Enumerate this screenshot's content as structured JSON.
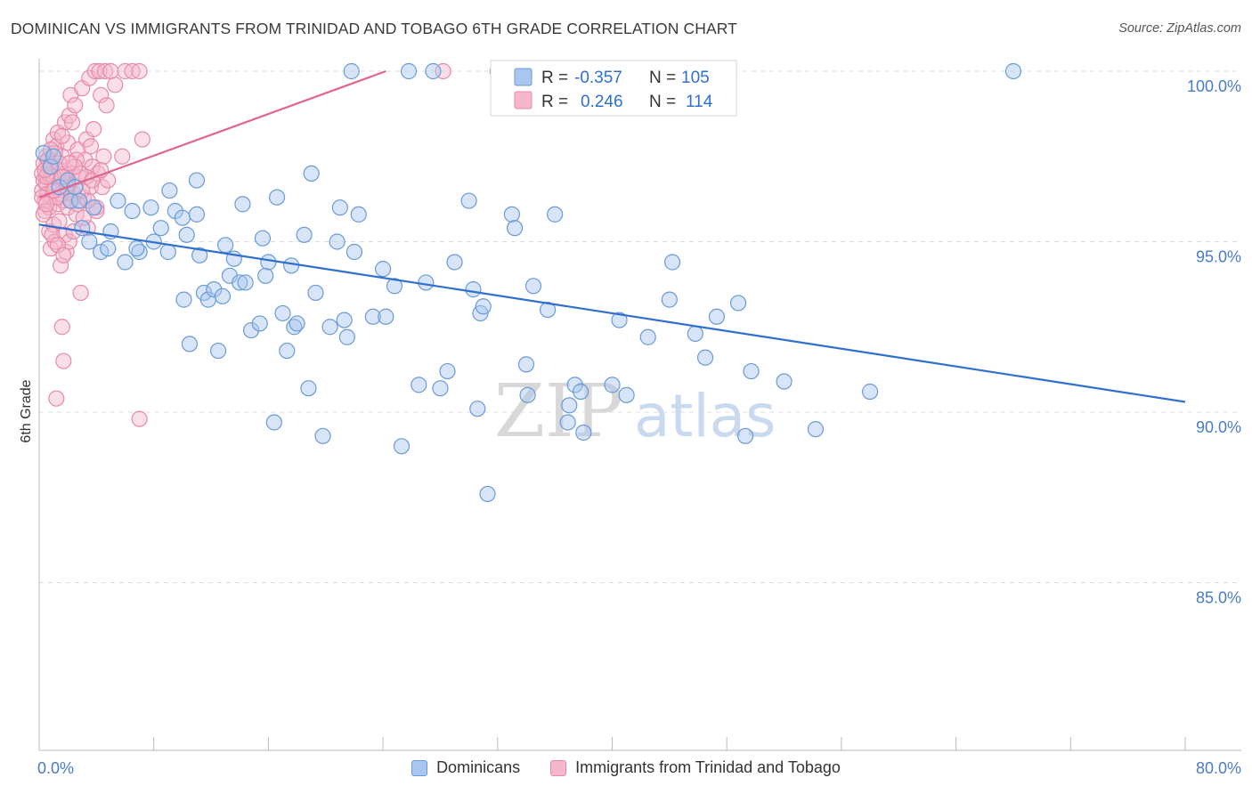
{
  "title": "DOMINICAN VS IMMIGRANTS FROM TRINIDAD AND TOBAGO 6TH GRADE CORRELATION CHART",
  "source": "Source: ZipAtlas.com",
  "watermark": {
    "zip": "ZIP",
    "atlas": "atlas"
  },
  "colors": {
    "blue_fill": "#a9c6f0",
    "blue_stroke": "#6a9ad6",
    "blue_line": "#2f6fcf",
    "pink_fill": "#f5b8cb",
    "pink_stroke": "#e68aa8",
    "pink_line": "#e0648c",
    "tick_color": "#4a7bc8",
    "grid": "#dcdcdc"
  },
  "stats_legend": [
    {
      "r_label": "R =",
      "r_value": "-0.357",
      "n_label": "N =",
      "n_value": "105",
      "series": "blue"
    },
    {
      "r_label": "R =",
      "r_value": "0.246",
      "n_label": "N =",
      "n_value": "114",
      "series": "pink"
    }
  ],
  "chart_data": {
    "type": "scatter",
    "title": "DOMINICAN VS IMMIGRANTS FROM TRINIDAD AND TOBAGO 6TH GRADE CORRELATION CHART",
    "xlabel": "",
    "ylabel": "6th Grade",
    "xlim": [
      0,
      80
    ],
    "ylim": [
      80.5,
      100.5
    ],
    "x_tick_labels": [
      {
        "value": 0,
        "label": "0.0%"
      },
      {
        "value": 80,
        "label": "80.0%"
      }
    ],
    "x_minor_ticks": [
      8,
      16,
      24,
      32,
      40,
      48,
      56,
      64,
      72,
      80
    ],
    "y_ticks": [
      {
        "value": 100,
        "label": "100.0%"
      },
      {
        "value": 95,
        "label": "95.0%"
      },
      {
        "value": 90,
        "label": "90.0%"
      },
      {
        "value": 85,
        "label": "85.0%"
      }
    ],
    "grid": true,
    "legend": "bottom-center",
    "series": [
      {
        "name": "Dominicans",
        "color": "blue",
        "trend": {
          "x": [
            0,
            80
          ],
          "y": [
            95.5,
            90.3
          ]
        },
        "points": [
          [
            0.3,
            97.6
          ],
          [
            0.8,
            97.2
          ],
          [
            1.0,
            97.5
          ],
          [
            1.4,
            96.6
          ],
          [
            2.0,
            96.8
          ],
          [
            2.2,
            96.2
          ],
          [
            2.8,
            96.2
          ],
          [
            3.0,
            95.4
          ],
          [
            3.5,
            95.0
          ],
          [
            4.3,
            94.7
          ],
          [
            4.8,
            94.8
          ],
          [
            5.5,
            96.2
          ],
          [
            6.0,
            94.4
          ],
          [
            6.5,
            95.9
          ],
          [
            7.0,
            94.7
          ],
          [
            7.8,
            96.0
          ],
          [
            8.5,
            95.4
          ],
          [
            9.0,
            94.7
          ],
          [
            9.1,
            96.5
          ],
          [
            9.5,
            95.9
          ],
          [
            10.0,
            95.7
          ],
          [
            10.1,
            93.3
          ],
          [
            10.3,
            95.2
          ],
          [
            10.5,
            92.0
          ],
          [
            11.0,
            95.8
          ],
          [
            11.2,
            94.6
          ],
          [
            11.5,
            93.5
          ],
          [
            11.8,
            93.3
          ],
          [
            12.2,
            93.6
          ],
          [
            12.5,
            91.8
          ],
          [
            12.8,
            93.4
          ],
          [
            13.3,
            94.0
          ],
          [
            13.6,
            94.5
          ],
          [
            14.0,
            93.8
          ],
          [
            14.4,
            93.8
          ],
          [
            14.8,
            92.4
          ],
          [
            15.4,
            92.6
          ],
          [
            15.6,
            95.1
          ],
          [
            15.8,
            94.0
          ],
          [
            16.0,
            94.4
          ],
          [
            16.4,
            89.7
          ],
          [
            16.6,
            96.3
          ],
          [
            17.0,
            92.9
          ],
          [
            17.3,
            91.8
          ],
          [
            17.8,
            92.5
          ],
          [
            18.0,
            92.6
          ],
          [
            18.5,
            95.2
          ],
          [
            18.8,
            90.7
          ],
          [
            19.3,
            93.5
          ],
          [
            19.8,
            89.3
          ],
          [
            20.3,
            92.5
          ],
          [
            20.8,
            95.0
          ],
          [
            21.3,
            92.7
          ],
          [
            21.5,
            92.2
          ],
          [
            21.8,
            100.0
          ],
          [
            22.0,
            94.7
          ],
          [
            22.3,
            95.8
          ],
          [
            23.3,
            92.8
          ],
          [
            24.2,
            92.8
          ],
          [
            24.8,
            93.7
          ],
          [
            25.3,
            89.0
          ],
          [
            25.8,
            100.0
          ],
          [
            26.5,
            90.8
          ],
          [
            27.5,
            100.0
          ],
          [
            28.0,
            90.7
          ],
          [
            28.5,
            91.2
          ],
          [
            29.0,
            94.4
          ],
          [
            30.3,
            93.6
          ],
          [
            30.6,
            90.1
          ],
          [
            30.8,
            92.9
          ],
          [
            31.0,
            93.1
          ],
          [
            31.3,
            87.6
          ],
          [
            32.0,
            100.0
          ],
          [
            33.0,
            95.8
          ],
          [
            33.2,
            95.4
          ],
          [
            34.0,
            91.4
          ],
          [
            34.1,
            90.5
          ],
          [
            34.5,
            93.7
          ],
          [
            36.0,
            95.8
          ],
          [
            36.9,
            89.7
          ],
          [
            37.0,
            90.2
          ],
          [
            37.4,
            90.8
          ],
          [
            37.8,
            90.6
          ],
          [
            38.0,
            89.4
          ],
          [
            40.0,
            90.8
          ],
          [
            41.0,
            90.5
          ],
          [
            44.0,
            93.3
          ],
          [
            44.2,
            94.4
          ],
          [
            45.8,
            92.3
          ],
          [
            47.3,
            92.8
          ],
          [
            48.8,
            93.2
          ],
          [
            49.3,
            89.3
          ],
          [
            49.7,
            91.2
          ],
          [
            54.2,
            89.5
          ],
          [
            68.0,
            100.0
          ],
          [
            2.5,
            96.6
          ],
          [
            3.8,
            96.0
          ],
          [
            5.0,
            95.3
          ],
          [
            6.8,
            94.8
          ],
          [
            8.0,
            95.0
          ],
          [
            13.0,
            94.9
          ],
          [
            17.6,
            94.3
          ],
          [
            24.0,
            94.2
          ],
          [
            27.0,
            93.8
          ],
          [
            35.5,
            93.0
          ],
          [
            40.5,
            92.7
          ],
          [
            42.5,
            92.2
          ],
          [
            46.5,
            91.6
          ],
          [
            52.0,
            90.9
          ],
          [
            58.0,
            90.6
          ],
          [
            30.0,
            96.2
          ],
          [
            19.0,
            97.0
          ],
          [
            11.0,
            96.8
          ],
          [
            14.2,
            96.1
          ],
          [
            21.0,
            96.0
          ]
        ]
      },
      {
        "name": "Immigrants from Trinidad and Tobago",
        "color": "pink",
        "trend": {
          "x": [
            0,
            24.2
          ],
          "y": [
            96.3,
            100.0
          ]
        },
        "points": [
          [
            0.2,
            97.0
          ],
          [
            0.2,
            96.5
          ],
          [
            0.3,
            96.8
          ],
          [
            0.3,
            97.3
          ],
          [
            0.4,
            96.2
          ],
          [
            0.4,
            95.9
          ],
          [
            0.5,
            97.5
          ],
          [
            0.5,
            96.7
          ],
          [
            0.6,
            96.4
          ],
          [
            0.6,
            97.0
          ],
          [
            0.7,
            95.3
          ],
          [
            0.7,
            96.0
          ],
          [
            0.8,
            96.9
          ],
          [
            0.8,
            94.8
          ],
          [
            0.9,
            97.2
          ],
          [
            0.9,
            96.3
          ],
          [
            1.0,
            98.0
          ],
          [
            1.0,
            95.5
          ],
          [
            1.1,
            96.6
          ],
          [
            1.1,
            95.0
          ],
          [
            1.2,
            97.8
          ],
          [
            1.2,
            90.4
          ],
          [
            1.3,
            96.1
          ],
          [
            1.3,
            98.2
          ],
          [
            1.4,
            95.6
          ],
          [
            1.4,
            97.1
          ],
          [
            1.5,
            96.8
          ],
          [
            1.5,
            94.3
          ],
          [
            1.6,
            92.5
          ],
          [
            1.6,
            97.5
          ],
          [
            1.7,
            96.2
          ],
          [
            1.7,
            91.5
          ],
          [
            1.8,
            98.5
          ],
          [
            1.8,
            95.2
          ],
          [
            1.9,
            96.5
          ],
          [
            1.9,
            94.7
          ],
          [
            2.0,
            97.9
          ],
          [
            2.0,
            96.0
          ],
          [
            2.1,
            98.7
          ],
          [
            2.1,
            95.0
          ],
          [
            2.2,
            99.3
          ],
          [
            2.3,
            97.0
          ],
          [
            2.4,
            96.4
          ],
          [
            2.5,
            99.0
          ],
          [
            2.6,
            95.8
          ],
          [
            2.7,
            97.7
          ],
          [
            2.8,
            96.9
          ],
          [
            2.9,
            93.5
          ],
          [
            3.0,
            99.5
          ],
          [
            3.1,
            96.3
          ],
          [
            3.2,
            97.4
          ],
          [
            3.3,
            98.0
          ],
          [
            3.4,
            95.4
          ],
          [
            3.5,
            99.8
          ],
          [
            3.6,
            96.6
          ],
          [
            3.7,
            97.2
          ],
          [
            3.8,
            98.3
          ],
          [
            3.9,
            100.0
          ],
          [
            4.0,
            96.0
          ],
          [
            4.1,
            97.0
          ],
          [
            4.2,
            100.0
          ],
          [
            4.3,
            99.3
          ],
          [
            4.4,
            96.6
          ],
          [
            4.5,
            97.5
          ],
          [
            4.6,
            100.0
          ],
          [
            4.7,
            99.0
          ],
          [
            4.8,
            96.8
          ],
          [
            5.0,
            100.0
          ],
          [
            5.3,
            99.6
          ],
          [
            5.8,
            97.5
          ],
          [
            6.0,
            100.0
          ],
          [
            6.5,
            100.0
          ],
          [
            7.0,
            100.0
          ],
          [
            7.2,
            98.0
          ],
          [
            7.0,
            89.8
          ],
          [
            1.0,
            96.9
          ],
          [
            1.5,
            96.4
          ],
          [
            2.0,
            96.7
          ],
          [
            0.5,
            96.9
          ],
          [
            0.7,
            97.2
          ],
          [
            1.1,
            97.6
          ],
          [
            1.6,
            98.1
          ],
          [
            2.3,
            98.5
          ],
          [
            2.6,
            97.4
          ],
          [
            3.0,
            96.5
          ],
          [
            0.3,
            95.8
          ],
          [
            0.9,
            95.2
          ],
          [
            1.3,
            94.9
          ],
          [
            1.7,
            94.6
          ],
          [
            2.4,
            95.3
          ],
          [
            2.7,
            96.1
          ],
          [
            3.3,
            96.9
          ],
          [
            3.6,
            97.8
          ],
          [
            4.0,
            95.9
          ],
          [
            0.6,
            97.4
          ],
          [
            1.2,
            96.3
          ],
          [
            1.8,
            97.0
          ],
          [
            2.2,
            96.2
          ],
          [
            2.9,
            97.0
          ],
          [
            3.4,
            96.2
          ],
          [
            0.4,
            97.1
          ],
          [
            0.8,
            97.7
          ],
          [
            1.4,
            97.3
          ],
          [
            1.9,
            96.6
          ],
          [
            2.5,
            97.2
          ],
          [
            3.1,
            95.7
          ],
          [
            3.7,
            96.8
          ],
          [
            4.3,
            97.1
          ],
          [
            0.2,
            96.3
          ],
          [
            0.5,
            96.1
          ],
          [
            28.2,
            100.0
          ],
          [
            1.0,
            96.5
          ],
          [
            1.6,
            96.9
          ],
          [
            2.1,
            97.3
          ]
        ]
      }
    ]
  },
  "bottom_legend": [
    {
      "label": "Dominicans",
      "color": "blue"
    },
    {
      "label": "Immigrants from Trinidad and Tobago",
      "color": "pink"
    }
  ]
}
